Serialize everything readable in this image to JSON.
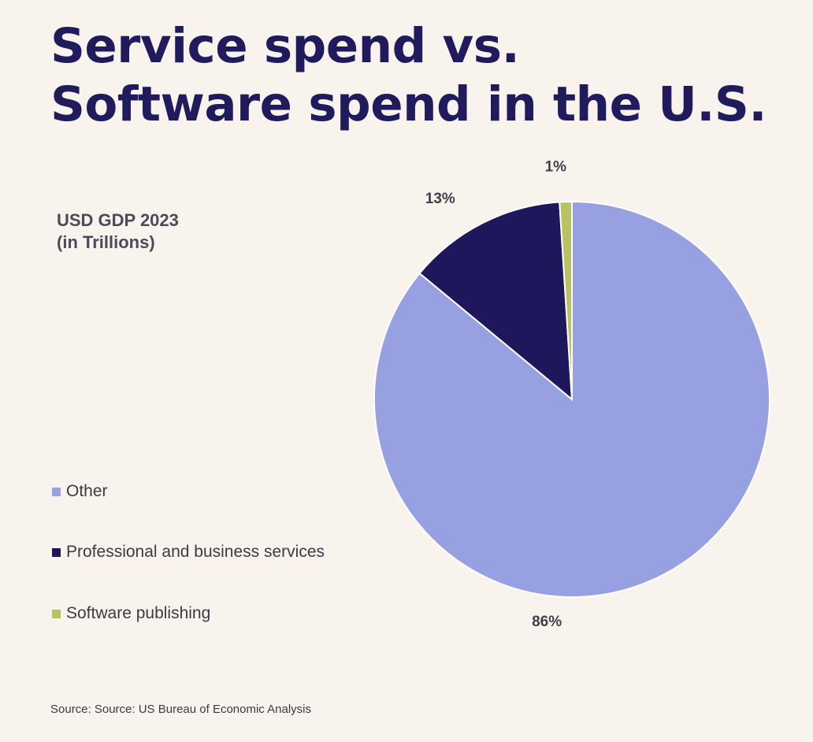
{
  "title": {
    "line1": "Service spend vs.",
    "line2": "Software spend in the U.S."
  },
  "chart_data": {
    "type": "pie",
    "title": "Service spend vs. Software spend in the U.S.",
    "unit_label": [
      "USD GDP 2023",
      "(in Trillions)"
    ],
    "legend_position": "left",
    "categories": [
      "Other",
      "Professional and business services",
      "Software publishing"
    ],
    "values": [
      86,
      13,
      1
    ],
    "labels": [
      "86%",
      "13%",
      "1%"
    ],
    "colors": [
      "#97a0e1",
      "#1f175c",
      "#b9c262"
    ]
  },
  "source": "Source: Source: US Bureau of Economic Analysis"
}
